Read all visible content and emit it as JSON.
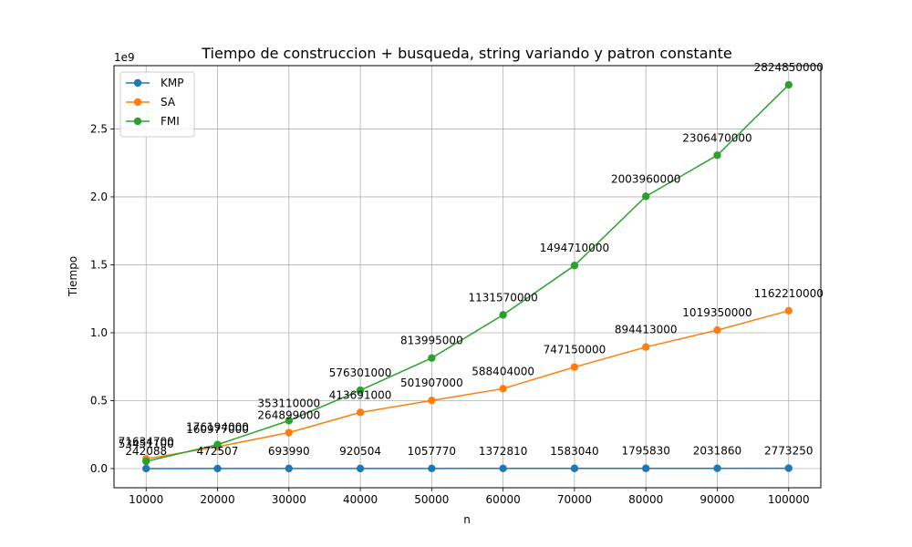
{
  "chart_data": {
    "type": "line",
    "title": "Tiempo de construccion + busqueda, string variando y patron constante",
    "xlabel": "n",
    "ylabel": "Tiempo",
    "y_offset_label": "1e9",
    "x": [
      10000,
      20000,
      30000,
      40000,
      50000,
      60000,
      70000,
      80000,
      90000,
      100000
    ],
    "x_tick_labels": [
      "10000",
      "20000",
      "30000",
      "40000",
      "50000",
      "60000",
      "70000",
      "80000",
      "90000",
      "100000"
    ],
    "xlim": [
      5500,
      104500
    ],
    "ylim": [
      -141000000,
      2966000000
    ],
    "y_ticks": [
      0,
      500000000,
      1000000000,
      1500000000,
      2000000000,
      2500000000
    ],
    "y_tick_labels": [
      "0.0",
      "0.5",
      "1.0",
      "1.5",
      "2.0",
      "2.5"
    ],
    "grid": true,
    "legend_position": "top-left",
    "series": [
      {
        "name": "KMP",
        "color": "#1f77b4",
        "values": [
          242088,
          472507,
          693990,
          920504,
          1057770,
          1372810,
          1583040,
          1795830,
          2031860,
          2773250
        ],
        "labels": [
          "242088",
          "472507",
          "693990",
          "920504",
          "1057770",
          "1372810",
          "1583040",
          "1795830",
          "2031860",
          "2773250"
        ]
      },
      {
        "name": "SA",
        "color": "#ff7f0e",
        "values": [
          71634700,
          160977000,
          264899000,
          413691000,
          501907000,
          588404000,
          747150000,
          894413000,
          1019350000,
          1162210000
        ],
        "labels": [
          "71634700",
          "160977000",
          "264899000",
          "413691000",
          "501907000",
          "588404000",
          "747150000",
          "894413000",
          "1019350000",
          "1162210000"
        ]
      },
      {
        "name": "FMI",
        "color": "#2ca02c",
        "values": [
          53451100,
          176194000,
          353110000,
          576301000,
          813995000,
          1131570000,
          1494710000,
          2003960000,
          2306470000,
          2824850000
        ],
        "labels": [
          "53451100",
          "176194000",
          "353110000",
          "576301000",
          "813995000",
          "1131570000",
          "1494710000",
          "2003960000",
          "2306470000",
          "2824850000"
        ]
      }
    ]
  }
}
